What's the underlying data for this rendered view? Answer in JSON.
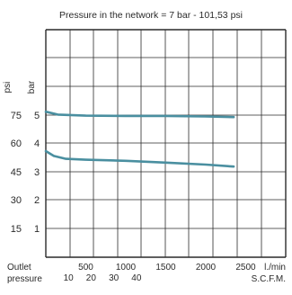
{
  "chart_data": {
    "type": "line",
    "title": "Pressure in the network = 7 bar - 101,53 psi",
    "xlabel": "Outlet pressure",
    "ylabel_psi": "psi",
    "ylabel_bar": "bar",
    "x_units_primary": "l./min",
    "x_units_secondary": "S.C.F.M.",
    "xlim": [
      0,
      3000
    ],
    "ylim_bar": [
      0,
      7
    ],
    "x_ticks_primary": [
      {
        "value": 500,
        "label": "500"
      },
      {
        "value": 1000,
        "label": "1000"
      },
      {
        "value": 1500,
        "label": "1500"
      },
      {
        "value": 2000,
        "label": "2000"
      },
      {
        "value": 2500,
        "label": "2500"
      }
    ],
    "x_ticks_secondary": [
      {
        "value": 283,
        "label": "10"
      },
      {
        "value": 566,
        "label": "20"
      },
      {
        "value": 850,
        "label": "30"
      },
      {
        "value": 1133,
        "label": "40"
      }
    ],
    "y_ticks": [
      {
        "bar": 1,
        "bar_label": "1",
        "psi_label": "15"
      },
      {
        "bar": 2,
        "bar_label": "2",
        "psi_label": "30"
      },
      {
        "bar": 3,
        "bar_label": "3",
        "psi_label": "45"
      },
      {
        "bar": 4,
        "bar_label": "4",
        "psi_label": "60"
      },
      {
        "bar": 5,
        "bar_label": "5",
        "psi_label": "75"
      }
    ],
    "series": [
      {
        "x": [
          0,
          150,
          500,
          1000,
          1500,
          2000,
          2350
        ],
        "y": [
          5.12,
          5.02,
          4.98,
          4.97,
          4.97,
          4.95,
          4.93
        ],
        "color": "#4a8fa0"
      },
      {
        "x": [
          0,
          100,
          250,
          500,
          1000,
          1500,
          2000,
          2350
        ],
        "y": [
          3.72,
          3.55,
          3.45,
          3.42,
          3.38,
          3.32,
          3.25,
          3.18
        ],
        "color": "#4a8fa0"
      }
    ],
    "grid": true,
    "grid_color": "#2a2a2a",
    "curve_color": "#4a8fa0"
  }
}
